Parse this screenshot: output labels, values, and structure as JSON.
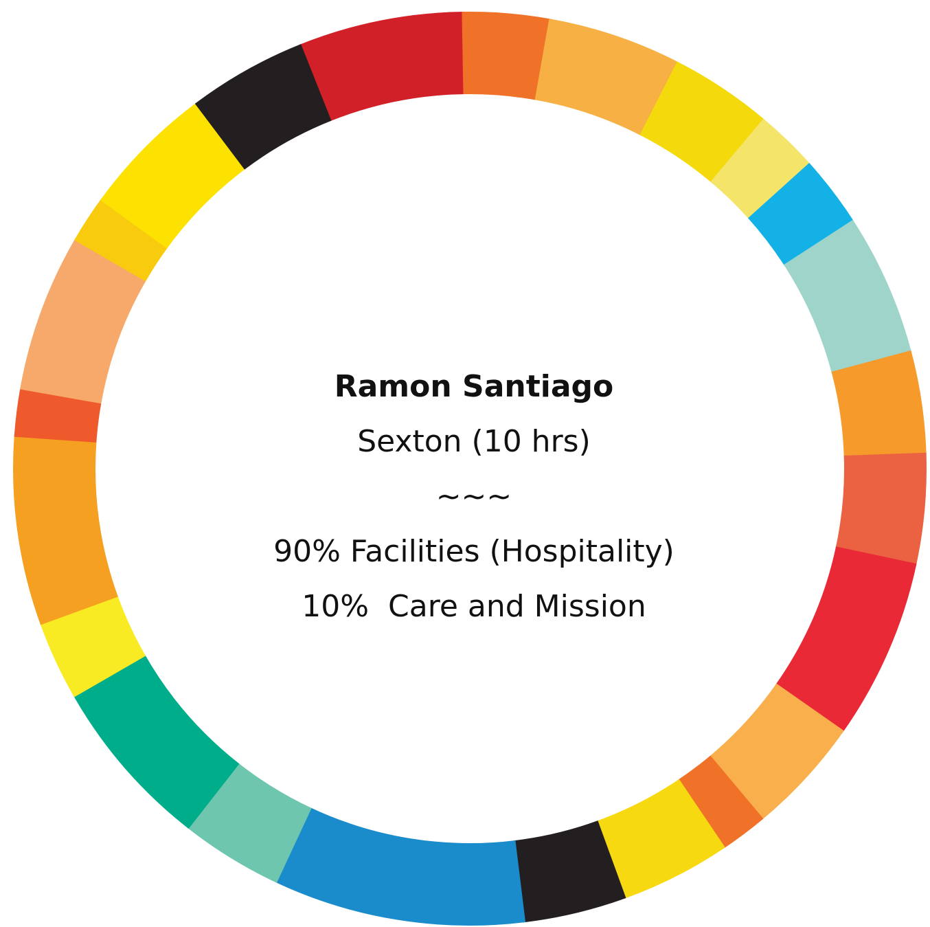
{
  "name": "Ramon Santiago",
  "role": "Sexton (10 hrs)",
  "divider": "~~~",
  "allocations": [
    "90% Facilities (Hospitality)",
    "10%  Care and Mission"
  ]
}
